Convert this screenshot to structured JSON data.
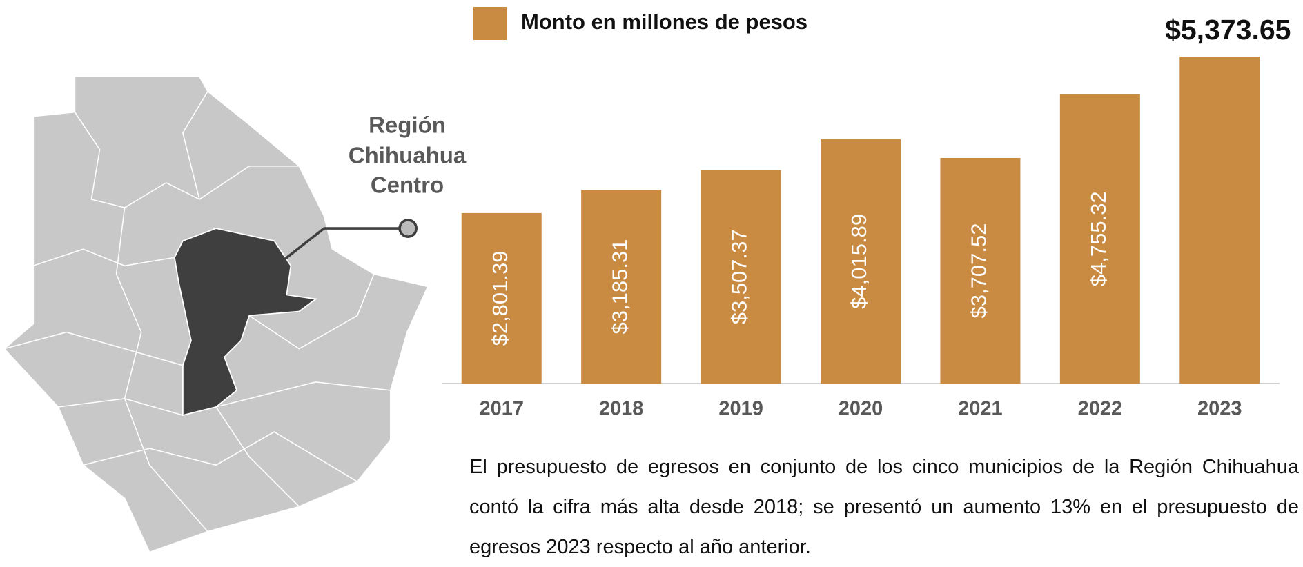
{
  "chart_data": {
    "type": "bar",
    "categories": [
      "2017",
      "2018",
      "2019",
      "2020",
      "2021",
      "2022",
      "2023"
    ],
    "series": [
      {
        "name": "Monto en millones de pesos",
        "color": "#c98a42",
        "values": [
          2801.39,
          3185.31,
          3507.37,
          4015.89,
          3707.52,
          4755.32,
          5373.65
        ],
        "value_labels": [
          "$2,801.39",
          "$3,185.31",
          "$3,507.37",
          "$4,015.89",
          "$3,707.52",
          "$4,755.32",
          "$5,373.65"
        ]
      }
    ]
  },
  "map": {
    "label": [
      "Región",
      "Chihuahua",
      "Centro"
    ]
  },
  "paragraph": "El presupuesto de egresos en conjunto de los cinco municipios de la Región Chihuahua contó la cifra más alta desde 2018; se presentó un aumento 13% en el presupuesto de egresos 2023 respecto al año anterior."
}
